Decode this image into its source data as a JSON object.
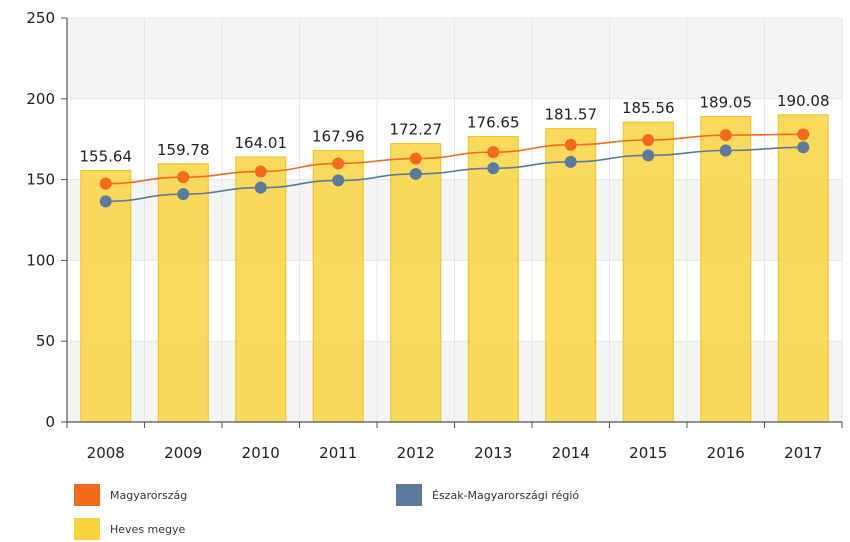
{
  "chart_data": {
    "type": "bar",
    "categories": [
      "2008",
      "2009",
      "2010",
      "2011",
      "2012",
      "2013",
      "2014",
      "2015",
      "2016",
      "2017"
    ],
    "series": [
      {
        "name": "Heves megye",
        "type": "bar",
        "color": "#f8d33f",
        "values": [
          155.64,
          159.78,
          164.01,
          167.96,
          172.27,
          176.65,
          181.57,
          185.56,
          189.05,
          190.08
        ],
        "data_labels": [
          "155.64",
          "159.78",
          "164.01",
          "167.96",
          "172.27",
          "176.65",
          "181.57",
          "185.56",
          "189.05",
          "190.08"
        ]
      },
      {
        "name": "Magyarország",
        "type": "line",
        "color": "#f26b1d",
        "values": [
          147.5,
          151.5,
          155.0,
          160.0,
          163.0,
          167.0,
          171.5,
          174.5,
          177.5,
          178.0
        ]
      },
      {
        "name": "Észak-Magyarországi régió",
        "type": "line",
        "color": "#5b7a9c",
        "values": [
          136.5,
          141.0,
          145.0,
          149.5,
          153.5,
          157.0,
          161.0,
          165.0,
          168.0,
          170.0
        ]
      }
    ],
    "yticks": [
      "0",
      "50",
      "100",
      "150",
      "200",
      "250"
    ],
    "ylim": [
      0,
      250
    ],
    "title": "",
    "xlabel": "",
    "ylabel": "",
    "grid": "alternating bands",
    "legend_position": "bottom"
  },
  "legend": {
    "items": [
      {
        "label": "Magyarország",
        "color": "#f26b1d"
      },
      {
        "label": "Észak-Magyarországi régió",
        "color": "#5b7a9c"
      },
      {
        "label": "Heves megye",
        "color": "#f8d33f"
      }
    ]
  }
}
